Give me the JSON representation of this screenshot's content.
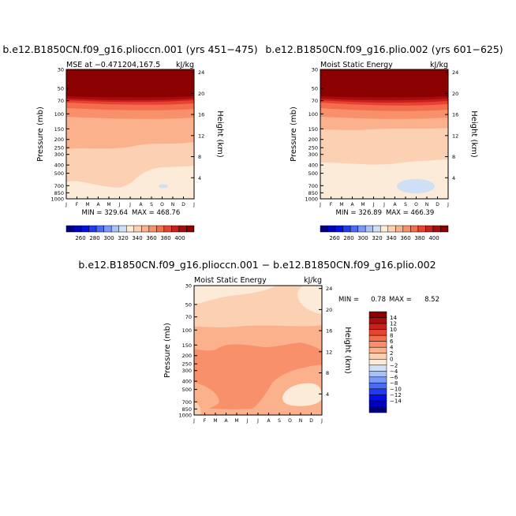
{
  "colors": {
    "neg": [
      "#00007f",
      "#0000bf",
      "#0010e6",
      "#1f3bf2",
      "#4a6cf5",
      "#7a99f7",
      "#a9c2f5",
      "#cfdff5"
    ],
    "pos": [
      "#fdebd9",
      "#fcd0b3",
      "#fbb28c",
      "#f8916b",
      "#f46d4d",
      "#e64331",
      "#c8211d",
      "#a80c0c",
      "#8b0000"
    ]
  },
  "chart_data": [
    {
      "type": "heatmap",
      "title": "b.e12.B1850CN.f09_g16.plioccn.001 (yrs 451−475)",
      "subtitle_left": "MSE at −0.471204,167.5",
      "subtitle_right": "kJ/kg",
      "ylabel": "Pressure (mb)",
      "ylabel_right": "Height (km)",
      "x_ticks": [
        "J",
        "F",
        "M",
        "A",
        "M",
        "J",
        "J",
        "A",
        "S",
        "O",
        "N",
        "D",
        "J"
      ],
      "y_ticks": [
        "30",
        "50",
        "70",
        "100",
        "150",
        "200",
        "250",
        "300",
        "400",
        "500",
        "700",
        "850",
        "1000"
      ],
      "height_ticks": [
        "24",
        "20",
        "16",
        "12",
        "8",
        "4"
      ],
      "min_label": "MIN = 329.64",
      "max_label": "MAX = 468.76",
      "colorbar": {
        "levels": [
          "260",
          "280",
          "300",
          "320",
          "340",
          "360",
          "380",
          "400"
        ],
        "colors": [
          "#00007f",
          "#1f3bf2",
          "#4a6cf5",
          "#7a99f7",
          "#a9c2f5",
          "#cfdff5",
          "#fdebd9",
          "#fcd0b3",
          "#fbb28c",
          "#f8916b",
          "#f46d4d",
          "#e64331",
          "#c8211d",
          "#8b0000"
        ]
      },
      "profile_levels_mb": [
        30,
        50,
        70,
        100,
        150,
        200,
        250,
        300,
        400,
        500,
        700,
        850,
        1000
      ],
      "profile_values_kJkg": [
        468,
        400,
        390,
        375,
        355,
        345,
        340,
        338,
        335,
        334,
        334,
        336,
        340
      ],
      "min": 329.64,
      "max": 468.76
    },
    {
      "type": "heatmap",
      "title": "b.e12.B1850CN.f09_g16.plio.002 (yrs 601−625)",
      "subtitle_left": "Moist Static Energy",
      "subtitle_right": "kJ/kg",
      "ylabel": "Pressure (mb)",
      "ylabel_right": "Height (km)",
      "x_ticks": [
        "J",
        "F",
        "M",
        "A",
        "M",
        "J",
        "J",
        "A",
        "S",
        "O",
        "N",
        "D",
        "J"
      ],
      "y_ticks": [
        "30",
        "50",
        "70",
        "100",
        "150",
        "200",
        "250",
        "300",
        "400",
        "500",
        "700",
        "850",
        "1000"
      ],
      "height_ticks": [
        "24",
        "20",
        "16",
        "12",
        "8",
        "4"
      ],
      "min_label": "MIN = 326.89",
      "max_label": "MAX = 466.39",
      "colorbar": {
        "levels": [
          "260",
          "280",
          "300",
          "320",
          "340",
          "360",
          "380",
          "400"
        ]
      },
      "min": 326.89,
      "max": 466.39
    },
    {
      "type": "heatmap",
      "title": "b.e12.B1850CN.f09_g16.plioccn.001 − b.e12.B1850CN.f09_g16.plio.002",
      "subtitle_left": "Moist Static Energy",
      "subtitle_right": "kJ/kg",
      "ylabel": "Pressure (mb)",
      "ylabel_right": "Height (km)",
      "x_ticks": [
        "J",
        "F",
        "M",
        "A",
        "M",
        "J",
        "J",
        "A",
        "S",
        "O",
        "N",
        "D",
        "J"
      ],
      "y_ticks": [
        "30",
        "50",
        "70",
        "100",
        "150",
        "200",
        "250",
        "300",
        "400",
        "500",
        "700",
        "850",
        "1000"
      ],
      "height_ticks": [
        "24",
        "20",
        "16",
        "12",
        "8",
        "4"
      ],
      "min_text": "MIN =",
      "min_value": "0.78",
      "max_text": "MAX =",
      "max_value": "8.52",
      "colorbar": {
        "levels": [
          "14",
          "12",
          "10",
          "8",
          "6",
          "4",
          "2",
          "0",
          "−2",
          "−4",
          "−6",
          "−8",
          "−10",
          "−12",
          "−14"
        ]
      },
      "min": 0.78,
      "max": 8.52
    }
  ]
}
